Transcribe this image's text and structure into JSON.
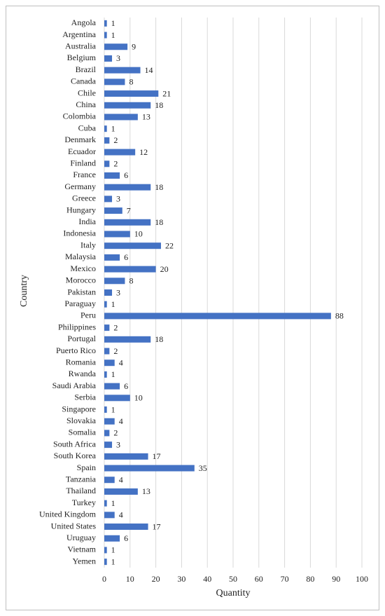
{
  "chart_data": {
    "type": "bar",
    "orientation": "horizontal",
    "x_label": "Quantity",
    "y_label": "Country",
    "categories": [
      "Angola",
      "Argentina",
      "Australia",
      "Belgium",
      "Brazil",
      "Canada",
      "Chile",
      "China",
      "Colombia",
      "Cuba",
      "Denmark",
      "Ecuador",
      "Finland",
      "France",
      "Germany",
      "Greece",
      "Hungary",
      "India",
      "Indonesia",
      "Italy",
      "Malaysia",
      "Mexico",
      "Morocco",
      "Pakistan",
      "Paraguay",
      "Peru",
      "Philippines",
      "Portugal",
      "Puerto Rico",
      "Romania",
      "Rwanda",
      "Saudi Arabia",
      "Serbia",
      "Singapore",
      "Slovakia",
      "Somalia",
      "South Africa",
      "South Korea",
      "Spain",
      "Tanzania",
      "Thailand",
      "Turkey",
      "United Kingdom",
      "United States",
      "Uruguay",
      "Vietnam",
      "Yemen"
    ],
    "values": [
      1,
      1,
      9,
      3,
      14,
      8,
      21,
      18,
      13,
      1,
      2,
      12,
      2,
      6,
      18,
      3,
      7,
      18,
      10,
      22,
      6,
      20,
      8,
      3,
      1,
      88,
      2,
      18,
      2,
      4,
      1,
      6,
      10,
      1,
      4,
      2,
      3,
      17,
      35,
      4,
      13,
      1,
      4,
      17,
      6,
      1,
      1
    ],
    "color": "#4472c4",
    "xlim": [
      0,
      100
    ],
    "xticks": [
      0,
      10,
      20,
      30,
      40,
      50,
      60,
      70,
      80,
      90,
      100
    ],
    "grid": true
  }
}
